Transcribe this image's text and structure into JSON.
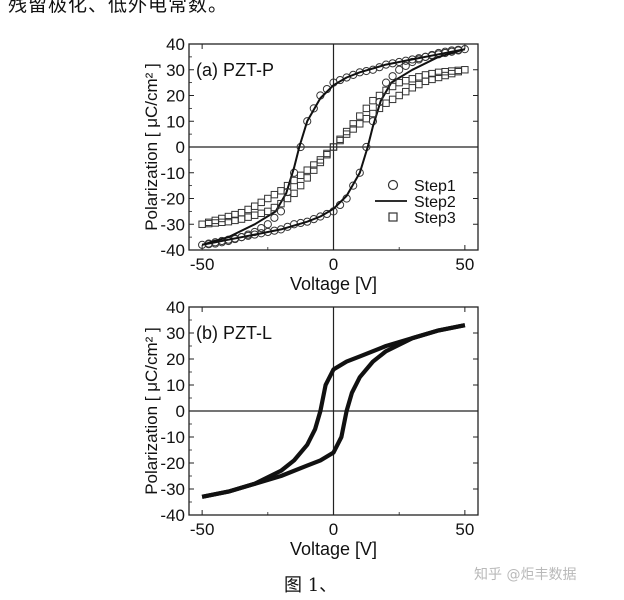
{
  "page_text": {
    "top_line": "残留极化、低外电常数。",
    "caption": "图 1、",
    "watermark": "知乎 @炬丰数据"
  },
  "chart_data": [
    {
      "type": "line",
      "panel_label": "(a) PZT-P",
      "xlabel": "Voltage [V]",
      "ylabel": "Polarization [ μC/cm² ]",
      "xlim": [
        -55,
        55
      ],
      "ylim": [
        -40,
        40
      ],
      "xticks": [
        -50,
        0,
        50
      ],
      "yticks": [
        -40,
        -30,
        -20,
        -10,
        0,
        10,
        20,
        30,
        40
      ],
      "legend_position": "lower-right",
      "series": [
        {
          "name": "Step1",
          "marker": "circle",
          "upper": {
            "x": [
              50,
              45,
              40,
              35,
              30,
              25,
              20,
              15,
              10,
              5,
              0,
              -5,
              -10,
              -15,
              -20,
              -25,
              -30,
              -35,
              -40,
              -45,
              -50
            ],
            "y": [
              38,
              37.5,
              36.5,
              35,
              34,
              33,
              32,
              30,
              29,
              27,
              25,
              20,
              10,
              -10,
              -25,
              -30,
              -33,
              -35,
              -36,
              -37,
              -38
            ]
          },
          "lower": {
            "x": [
              -50,
              -45,
              -40,
              -35,
              -30,
              -25,
              -20,
              -15,
              -10,
              -5,
              0,
              5,
              10,
              15,
              20,
              25,
              30,
              35,
              40,
              45,
              50
            ],
            "y": [
              -38,
              -37.5,
              -36.5,
              -35,
              -34,
              -33,
              -32,
              -30,
              -29,
              -27,
              -25,
              -20,
              -10,
              10,
              25,
              30,
              33,
              35,
              36,
              37,
              38
            ]
          }
        },
        {
          "name": "Step2",
          "marker": "line",
          "upper": {
            "x": [
              50,
              45,
              40,
              30,
              20,
              10,
              5,
              0,
              -5,
              -10,
              -13,
              -15,
              -18,
              -22,
              -30,
              -40,
              -50
            ],
            "y": [
              38,
              37,
              36,
              34,
              32,
              29,
              27,
              24,
              19,
              10,
              0,
              -8,
              -18,
              -25,
              -30,
              -35,
              -38
            ]
          },
          "lower": {
            "x": [
              -50,
              -45,
              -40,
              -30,
              -20,
              -10,
              -5,
              0,
              5,
              10,
              13,
              15,
              18,
              22,
              30,
              40,
              50
            ],
            "y": [
              -38,
              -37,
              -36,
              -34,
              -32,
              -29,
              -27,
              -24,
              -19,
              -10,
              0,
              8,
              18,
              25,
              30,
              35,
              38
            ]
          }
        },
        {
          "name": "Step3",
          "marker": "square",
          "upper": {
            "x": [
              50,
              45,
              40,
              35,
              30,
              25,
              20,
              15,
              10,
              5,
              0,
              -5,
              -10,
              -15,
              -20,
              -25,
              -30,
              -35,
              -40,
              -45,
              -50
            ],
            "y": [
              30,
              29.5,
              29,
              28,
              26.5,
              25,
              22,
              18,
              12,
              6,
              0,
              -5,
              -9,
              -13,
              -17,
              -20,
              -23,
              -25.5,
              -27,
              -28.5,
              -30
            ]
          },
          "lower": {
            "x": [
              -50,
              -45,
              -40,
              -35,
              -30,
              -25,
              -20,
              -15,
              -10,
              -5,
              0,
              5,
              10,
              15,
              20,
              25,
              30,
              35,
              40,
              45,
              50
            ],
            "y": [
              -30,
              -29.5,
              -29,
              -28,
              -26.5,
              -25,
              -22,
              -18,
              -12,
              -6,
              0,
              5,
              9,
              13,
              17,
              20,
              23,
              25.5,
              27,
              28.5,
              30
            ]
          }
        }
      ]
    },
    {
      "type": "line",
      "panel_label": "(b) PZT-L",
      "xlabel": "Voltage [V]",
      "ylabel": "Polarization [ μC/cm² ]",
      "xlim": [
        -55,
        55
      ],
      "ylim": [
        -40,
        40
      ],
      "xticks": [
        -50,
        0,
        50
      ],
      "yticks": [
        -40,
        -30,
        -20,
        -10,
        0,
        10,
        20,
        30,
        40
      ],
      "series": [
        {
          "name": "",
          "marker": "line",
          "upper": {
            "x": [
              50,
              40,
              30,
              20,
              10,
              5,
              0,
              -3,
              -5,
              -7,
              -10,
              -15,
              -20,
              -30,
              -40,
              -50
            ],
            "y": [
              33,
              31,
              28,
              25,
              21,
              19,
              16,
              10,
              0,
              -7,
              -13,
              -19,
              -23,
              -28,
              -31,
              -33
            ]
          },
          "lower": {
            "x": [
              -50,
              -40,
              -30,
              -20,
              -10,
              -5,
              0,
              3,
              5,
              7,
              10,
              15,
              20,
              30,
              40,
              50
            ],
            "y": [
              -33,
              -31,
              -28,
              -25,
              -21,
              -19,
              -16,
              -10,
              0,
              7,
              13,
              19,
              23,
              28,
              31,
              33
            ]
          }
        }
      ]
    }
  ]
}
